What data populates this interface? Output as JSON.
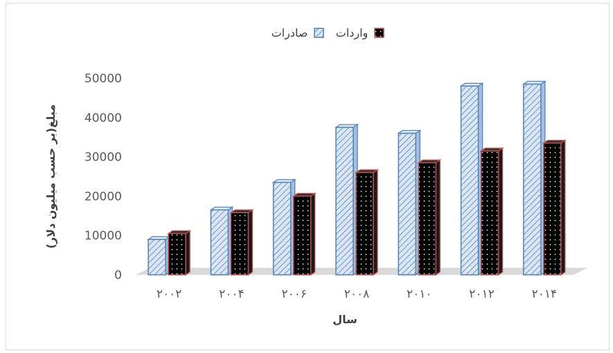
{
  "chart_data": {
    "type": "bar",
    "categories": [
      "۲۰۰۲",
      "۲۰۰۴",
      "۲۰۰۶",
      "۲۰۰۸",
      "۲۰۱۰",
      "۲۰۱۲",
      "۲۰۱۴"
    ],
    "series": [
      {
        "name": "صادرات",
        "values": [
          9000,
          16500,
          23500,
          37500,
          36000,
          48000,
          48500
        ],
        "color": "#c5d9f1",
        "pattern": "diagonal-hatch",
        "border": "#4f81bd"
      },
      {
        "name": "واردات",
        "values": [
          10500,
          15800,
          20000,
          26000,
          28500,
          31500,
          33500
        ],
        "color": "#000000",
        "pattern": "dotted",
        "border": "#c0504d"
      }
    ],
    "title": "",
    "xlabel": "سال",
    "ylabel": "مبلغ(بر حسب میلیون دلار)",
    "ylim": [
      0,
      50000
    ],
    "yticks": [
      "0",
      "10000",
      "20000",
      "30000",
      "40000",
      "50000"
    ],
    "grid": false,
    "legend_position": "top"
  }
}
